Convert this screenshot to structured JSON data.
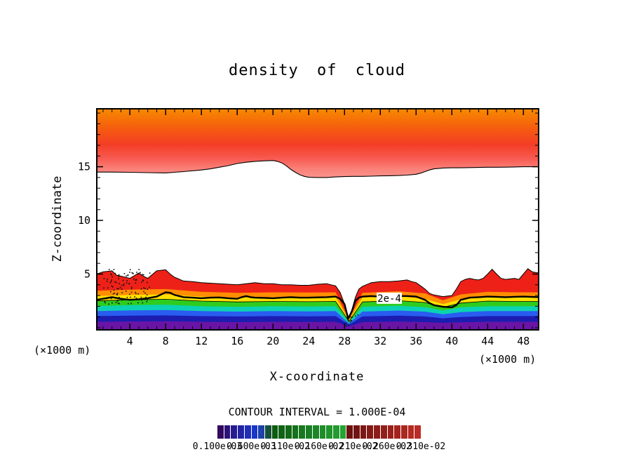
{
  "title": "density of cloud",
  "labels": {
    "x_axis": "X-coordinate",
    "y_axis": "Z-coordinate",
    "x_unit_left": "(×1000 m)",
    "x_unit_right": "(×1000 m)",
    "contour_interval": "CONTOUR INTERVAL = 1.000E-04"
  },
  "chart_data": {
    "type": "filled_contour",
    "title": "density of cloud",
    "xlabel": "X-coordinate",
    "ylabel": "Z-coordinate",
    "xlim": [
      0.3,
      49.7
    ],
    "zlim": [
      -0.2,
      20.4
    ],
    "x_major_ticks": [
      4,
      8,
      12,
      16,
      20,
      24,
      28,
      32,
      36,
      40,
      44,
      48
    ],
    "y_major_ticks": [
      5,
      10,
      15
    ],
    "minor_tick_step": 1,
    "contour_interval": 0.0001,
    "grid": false,
    "contour_label": {
      "text": "2e-4",
      "x": 33.0,
      "z": 2.75
    },
    "upper_cloud": {
      "gradient_stops": [
        [
          0,
          "#f78a00"
        ],
        [
          0.28,
          "#f55d0e"
        ],
        [
          0.52,
          "#f43d26"
        ],
        [
          0.72,
          "#f75a50"
        ],
        [
          0.87,
          "#fa8078"
        ],
        [
          1,
          "#fb948c"
        ]
      ],
      "lower_boundary": [
        [
          0.3,
          14.5
        ],
        [
          2,
          14.5
        ],
        [
          4,
          14.48
        ],
        [
          6,
          14.45
        ],
        [
          8,
          14.42
        ],
        [
          10,
          14.55
        ],
        [
          12,
          14.7
        ],
        [
          13,
          14.8
        ],
        [
          14,
          14.95
        ],
        [
          15,
          15.1
        ],
        [
          16,
          15.3
        ],
        [
          17,
          15.42
        ],
        [
          18,
          15.5
        ],
        [
          19,
          15.55
        ],
        [
          20,
          15.58
        ],
        [
          20.5,
          15.5
        ],
        [
          21,
          15.35
        ],
        [
          21.5,
          15.08
        ],
        [
          22,
          14.75
        ],
        [
          22.5,
          14.48
        ],
        [
          23,
          14.25
        ],
        [
          23.5,
          14.1
        ],
        [
          24,
          14.02
        ],
        [
          25,
          14.0
        ],
        [
          26,
          14.0
        ],
        [
          27,
          14.05
        ],
        [
          28,
          14.08
        ],
        [
          29,
          14.1
        ],
        [
          30,
          14.1
        ],
        [
          31,
          14.12
        ],
        [
          32,
          14.15
        ],
        [
          33,
          14.16
        ],
        [
          34,
          14.18
        ],
        [
          35,
          14.22
        ],
        [
          36,
          14.3
        ],
        [
          36.5,
          14.4
        ],
        [
          37,
          14.55
        ],
        [
          37.5,
          14.7
        ],
        [
          38,
          14.8
        ],
        [
          39,
          14.88
        ],
        [
          40,
          14.9
        ],
        [
          41,
          14.9
        ],
        [
          42,
          14.92
        ],
        [
          43,
          14.93
        ],
        [
          44,
          14.95
        ],
        [
          45,
          14.95
        ],
        [
          46,
          14.96
        ],
        [
          47,
          14.98
        ],
        [
          48,
          15.0
        ],
        [
          49,
          15.0
        ],
        [
          49.7,
          15.0
        ]
      ]
    },
    "lower_cloud": {
      "red_color": "#ee2119",
      "top_edge": [
        [
          0.3,
          5.0
        ],
        [
          1,
          5.2
        ],
        [
          2,
          5.3
        ],
        [
          2.5,
          4.9
        ],
        [
          3,
          4.8
        ],
        [
          4,
          4.6
        ],
        [
          5,
          5.1
        ],
        [
          5.5,
          4.8
        ],
        [
          6,
          4.6
        ],
        [
          7,
          5.3
        ],
        [
          8,
          5.4
        ],
        [
          8.5,
          5.0
        ],
        [
          9,
          4.7
        ],
        [
          10,
          4.35
        ],
        [
          11,
          4.3
        ],
        [
          12,
          4.2
        ],
        [
          13,
          4.15
        ],
        [
          14,
          4.1
        ],
        [
          15,
          4.05
        ],
        [
          16,
          4.0
        ],
        [
          17,
          4.1
        ],
        [
          18,
          4.2
        ],
        [
          19,
          4.1
        ],
        [
          20,
          4.1
        ],
        [
          21,
          4.0
        ],
        [
          22,
          4.0
        ],
        [
          23,
          3.95
        ],
        [
          24,
          3.95
        ],
        [
          25,
          4.05
        ],
        [
          26,
          4.1
        ],
        [
          26.5,
          4.0
        ],
        [
          27,
          3.9
        ],
        [
          27.5,
          3.3
        ],
        [
          28,
          2.2
        ],
        [
          28.4,
          0.9
        ],
        [
          28.8,
          1.6
        ],
        [
          29.2,
          2.8
        ],
        [
          29.6,
          3.6
        ],
        [
          30,
          3.85
        ],
        [
          31,
          4.2
        ],
        [
          32,
          4.3
        ],
        [
          33,
          4.3
        ],
        [
          34,
          4.35
        ],
        [
          35,
          4.45
        ],
        [
          35.5,
          4.3
        ],
        [
          36,
          4.2
        ],
        [
          36.5,
          3.9
        ],
        [
          37,
          3.6
        ],
        [
          37.5,
          3.2
        ],
        [
          38,
          3.05
        ],
        [
          39,
          2.9
        ],
        [
          40,
          3.0
        ],
        [
          40.5,
          3.6
        ],
        [
          41,
          4.3
        ],
        [
          41.5,
          4.5
        ],
        [
          42,
          4.6
        ],
        [
          42.5,
          4.5
        ],
        [
          43,
          4.45
        ],
        [
          43.5,
          4.6
        ],
        [
          44,
          5.0
        ],
        [
          44.5,
          5.45
        ],
        [
          45,
          5.0
        ],
        [
          45.5,
          4.6
        ],
        [
          46,
          4.5
        ],
        [
          47,
          4.6
        ],
        [
          47.5,
          4.5
        ],
        [
          48,
          5.0
        ],
        [
          48.5,
          5.5
        ],
        [
          49,
          5.2
        ],
        [
          49.7,
          5.1
        ]
      ],
      "layer_xs": [
        0.3,
        4,
        8,
        12,
        16,
        20,
        24,
        27,
        28.5,
        30,
        34,
        37,
        39,
        41,
        44,
        47,
        49.7
      ],
      "layers": [
        {
          "name": "orange",
          "color": "#ff8e00",
          "z": [
            3.45,
            3.55,
            3.6,
            3.35,
            3.25,
            3.3,
            3.28,
            3.3,
            0.8,
            3.25,
            3.4,
            3.2,
            2.55,
            3.1,
            3.35,
            3.3,
            3.3
          ]
        },
        {
          "name": "yellow",
          "color": "#ffe000",
          "z": [
            2.95,
            3.05,
            3.1,
            2.9,
            2.8,
            2.85,
            2.82,
            2.85,
            0.7,
            2.8,
            2.92,
            2.7,
            2.2,
            2.65,
            2.88,
            2.85,
            2.85
          ]
        },
        {
          "name": "green",
          "color": "#2ecc1e",
          "z": [
            2.5,
            2.6,
            2.65,
            2.48,
            2.4,
            2.45,
            2.42,
            2.45,
            0.6,
            2.4,
            2.52,
            2.35,
            1.9,
            2.3,
            2.48,
            2.45,
            2.45
          ]
        },
        {
          "name": "cyan",
          "color": "#0bd2b4",
          "z": [
            2.02,
            2.1,
            2.15,
            2.0,
            1.95,
            2.0,
            1.97,
            2.0,
            0.5,
            1.95,
            2.05,
            1.92,
            1.6,
            1.9,
            2.0,
            2.0,
            2.0
          ]
        },
        {
          "name": "blue",
          "color": "#2a5cf0",
          "z": [
            1.55,
            1.62,
            1.65,
            1.55,
            1.5,
            1.55,
            1.52,
            1.55,
            0.4,
            1.5,
            1.6,
            1.5,
            1.25,
            1.45,
            1.55,
            1.55,
            1.55
          ]
        },
        {
          "name": "navy",
          "color": "#1c1cb0",
          "z": [
            1.08,
            1.12,
            1.15,
            1.08,
            1.05,
            1.08,
            1.06,
            1.08,
            0.28,
            1.05,
            1.12,
            1.05,
            0.88,
            1.0,
            1.08,
            1.08,
            1.08
          ]
        },
        {
          "name": "purple",
          "color": "#6a14a6",
          "z": [
            0.55,
            0.58,
            0.6,
            0.55,
            0.52,
            0.55,
            0.53,
            0.55,
            0.12,
            0.52,
            0.58,
            0.52,
            0.45,
            0.5,
            0.55,
            0.55,
            0.55
          ]
        }
      ]
    },
    "thick_contour": {
      "stroke_width": 2.4,
      "segments": [
        [
          [
            0.3,
            2.6
          ],
          [
            1,
            2.7
          ],
          [
            2,
            2.85
          ],
          [
            3,
            2.7
          ],
          [
            4,
            2.6
          ],
          [
            5,
            2.65
          ],
          [
            6,
            2.75
          ],
          [
            7,
            2.9
          ],
          [
            8,
            3.3
          ],
          [
            8.5,
            3.25
          ],
          [
            9,
            3.05
          ],
          [
            10,
            2.85
          ],
          [
            11,
            2.8
          ],
          [
            12,
            2.75
          ],
          [
            13,
            2.8
          ],
          [
            14,
            2.82
          ],
          [
            15,
            2.75
          ],
          [
            16,
            2.7
          ],
          [
            16.5,
            2.85
          ],
          [
            17,
            2.95
          ],
          [
            17.5,
            2.85
          ],
          [
            18,
            2.8
          ],
          [
            19,
            2.78
          ],
          [
            20,
            2.75
          ],
          [
            21,
            2.8
          ],
          [
            22,
            2.85
          ],
          [
            23,
            2.8
          ],
          [
            24,
            2.8
          ],
          [
            25,
            2.83
          ],
          [
            26,
            2.85
          ],
          [
            27,
            2.9
          ],
          [
            27.5,
            2.7
          ],
          [
            28,
            2.2
          ],
          [
            28.4,
            0.85
          ],
          [
            28.8,
            1.5
          ],
          [
            29.2,
            2.5
          ],
          [
            29.6,
            2.8
          ],
          [
            30,
            2.9
          ],
          [
            31,
            2.95
          ],
          [
            31.8,
            2.9
          ]
        ],
        [
          [
            34.3,
            2.95
          ],
          [
            35,
            2.95
          ],
          [
            36,
            2.9
          ],
          [
            36.5,
            2.75
          ],
          [
            37,
            2.6
          ],
          [
            37.5,
            2.3
          ],
          [
            38,
            2.1
          ],
          [
            39,
            1.95
          ],
          [
            40,
            1.9
          ],
          [
            40.5,
            2.1
          ],
          [
            41,
            2.6
          ],
          [
            42,
            2.8
          ],
          [
            43,
            2.85
          ],
          [
            44,
            2.9
          ],
          [
            45,
            2.88
          ],
          [
            46,
            2.85
          ],
          [
            47,
            2.88
          ],
          [
            48,
            2.9
          ],
          [
            49,
            2.87
          ],
          [
            49.7,
            2.85
          ]
        ]
      ]
    },
    "speckle_clusters": [
      {
        "x": [
          1.0,
          6.2
        ],
        "z": [
          2.2,
          5.5
        ],
        "count": 110
      },
      {
        "x": [
          27.9,
          29.5
        ],
        "z": [
          0.15,
          1.4
        ],
        "count": 12
      }
    ]
  },
  "colorbar": {
    "colors": [
      "#31095e",
      "#2c1278",
      "#271b90",
      "#2224a6",
      "#1d2eb9",
      "#1838c9",
      "#1d43a8",
      "#145238",
      "#0d5c12",
      "#106316",
      "#126a19",
      "#15711c",
      "#177820",
      "#1a7f23",
      "#1c8626",
      "#1f8d2a",
      "#21942d",
      "#249b30",
      "#26a233",
      "#6b1210",
      "#731412",
      "#7b1714",
      "#831a16",
      "#8b1c18",
      "#931f1a",
      "#9b221c",
      "#a3241e",
      "#ab2720",
      "#b32a22",
      "#bb2c24"
    ],
    "labels": [
      "0.100e-03",
      "0.600e-03",
      "0.110e-02",
      "0.160e-02",
      "0.210e-02",
      "0.260e-02",
      "0.310e-02"
    ]
  }
}
